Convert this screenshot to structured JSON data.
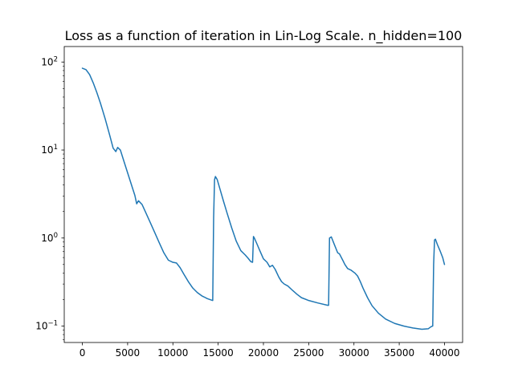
{
  "chart_data": {
    "type": "line",
    "title": "Loss as a function of iteration in Lin-Log Scale. n_hidden=100",
    "xlabel": "",
    "ylabel": "",
    "x_scale": "linear",
    "y_scale": "log",
    "xlim": [
      -2000,
      42000
    ],
    "ylim": [
      0.065,
      150
    ],
    "x_ticks": [
      0,
      5000,
      10000,
      15000,
      20000,
      25000,
      30000,
      35000,
      40000
    ],
    "x_tick_labels": [
      "0",
      "5000",
      "10000",
      "15000",
      "20000",
      "25000",
      "30000",
      "35000",
      "40000"
    ],
    "y_ticks": [
      {
        "value": 0.1,
        "base": "10",
        "exp": "−1"
      },
      {
        "value": 1,
        "base": "10",
        "exp": "0"
      },
      {
        "value": 10,
        "base": "10",
        "exp": "1"
      },
      {
        "value": 100,
        "base": "10",
        "exp": "2"
      }
    ],
    "y_minor_ticks": [
      0.07,
      0.08,
      0.09,
      0.2,
      0.3,
      0.4,
      0.5,
      0.6,
      0.7,
      0.8,
      0.9,
      2,
      3,
      4,
      5,
      6,
      7,
      8,
      9,
      20,
      30,
      40,
      50,
      60,
      70,
      80,
      90
    ],
    "grid": false,
    "legend": "none",
    "series": [
      {
        "color": "#1f77b4",
        "x": [
          0,
          400,
          800,
          1200,
          1600,
          2000,
          2500,
          3000,
          3400,
          3700,
          3900,
          4200,
          4600,
          5000,
          5500,
          5800,
          6000,
          6200,
          6600,
          7000,
          7500,
          8000,
          8500,
          9000,
          9500,
          10000,
          10400,
          10800,
          11200,
          11700,
          12200,
          12700,
          13200,
          13800,
          14400,
          14500,
          14600,
          14700,
          14900,
          15200,
          15600,
          16000,
          16500,
          17000,
          17500,
          18000,
          18300,
          18600,
          18800,
          18900,
          19000,
          19300,
          19600,
          20000,
          20400,
          20700,
          21000,
          21300,
          21700,
          22000,
          22300,
          22700,
          23200,
          23700,
          24200,
          25000,
          26000,
          27100,
          27200,
          27300,
          27500,
          27800,
          28200,
          28400,
          28800,
          29000,
          29300,
          29700,
          30100,
          30400,
          30700,
          31000,
          31500,
          32000,
          32700,
          33500,
          34500,
          35500,
          36500,
          37500,
          38200,
          38500,
          38700,
          38800,
          38900,
          39000,
          39200,
          39500,
          39800,
          40000
        ],
        "y": [
          85,
          82,
          72,
          58,
          45,
          34,
          23,
          15,
          10.5,
          9.6,
          10.7,
          10,
          7.4,
          5.5,
          3.8,
          3.05,
          2.45,
          2.65,
          2.4,
          1.95,
          1.5,
          1.15,
          0.88,
          0.68,
          0.56,
          0.53,
          0.52,
          0.46,
          0.39,
          0.32,
          0.27,
          0.24,
          0.22,
          0.205,
          0.195,
          1.7,
          4.6,
          5.0,
          4.6,
          3.6,
          2.6,
          1.9,
          1.3,
          0.92,
          0.72,
          0.64,
          0.59,
          0.54,
          0.53,
          1.04,
          1.0,
          0.85,
          0.72,
          0.58,
          0.53,
          0.47,
          0.49,
          0.44,
          0.36,
          0.32,
          0.3,
          0.285,
          0.255,
          0.23,
          0.21,
          0.195,
          0.183,
          0.172,
          0.172,
          1.0,
          1.03,
          0.86,
          0.68,
          0.66,
          0.55,
          0.5,
          0.45,
          0.43,
          0.4,
          0.37,
          0.32,
          0.27,
          0.21,
          0.17,
          0.14,
          0.12,
          0.107,
          0.1,
          0.095,
          0.092,
          0.093,
          0.098,
          0.1,
          0.5,
          0.95,
          0.97,
          0.85,
          0.72,
          0.6,
          0.5
        ]
      }
    ]
  }
}
